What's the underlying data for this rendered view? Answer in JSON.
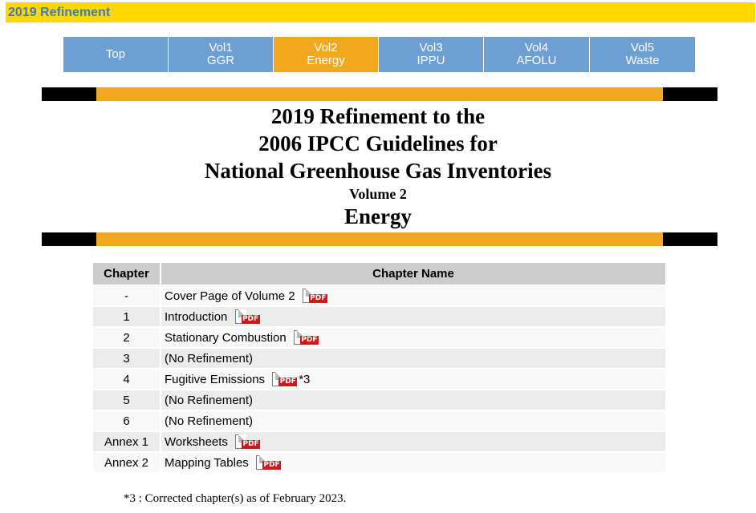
{
  "topbar": {
    "title": "2019 Refinement"
  },
  "nav": {
    "items": [
      {
        "line1": "Top",
        "line2": ""
      },
      {
        "line1": "Vol1",
        "line2": "GGR"
      },
      {
        "line1": "Vol2",
        "line2": "Energy",
        "active": true
      },
      {
        "line1": "Vol3",
        "line2": "IPPU"
      },
      {
        "line1": "Vol4",
        "line2": "AFOLU"
      },
      {
        "line1": "Vol5",
        "line2": "Waste"
      }
    ]
  },
  "heading": {
    "line1": "2019 Refinement to the",
    "line2": "2006 IPCC Guidelines for",
    "line3": "National Greenhouse Gas Inventories",
    "volume": "Volume 2",
    "topic": "Energy"
  },
  "table": {
    "headers": {
      "chapter": "Chapter",
      "name": "Chapter Name"
    },
    "pdf_icon_label": "PDF",
    "rows": [
      {
        "chapter": "-",
        "name": "Cover Page of Volume 2",
        "pdf": true,
        "note": ""
      },
      {
        "chapter": "1",
        "name": "Introduction",
        "pdf": true,
        "note": ""
      },
      {
        "chapter": "2",
        "name": "Stationary Combustion",
        "pdf": true,
        "note": ""
      },
      {
        "chapter": "3",
        "name": "(No Refinement)",
        "pdf": false,
        "note": ""
      },
      {
        "chapter": "4",
        "name": "Fugitive Emissions",
        "pdf": true,
        "note": "*3"
      },
      {
        "chapter": "5",
        "name": "(No Refinement)",
        "pdf": false,
        "note": ""
      },
      {
        "chapter": "6",
        "name": "(No Refinement)",
        "pdf": false,
        "note": ""
      },
      {
        "chapter": "Annex 1",
        "name": "Worksheets",
        "pdf": true,
        "note": ""
      },
      {
        "chapter": "Annex 2",
        "name": "Mapping Tables",
        "pdf": true,
        "note": ""
      }
    ]
  },
  "footnote": "*3 : Corrected chapter(s) as of February 2023.",
  "colors": {
    "topbar_bg": "#ffd800",
    "topbar_text": "#3a7cc3",
    "nav_bg": "#6d9fd2",
    "nav_active_bg": "#f0a81e",
    "band_black": "#000000",
    "band_orange": "#f0a81e",
    "pdf_red": "#d4161b"
  }
}
